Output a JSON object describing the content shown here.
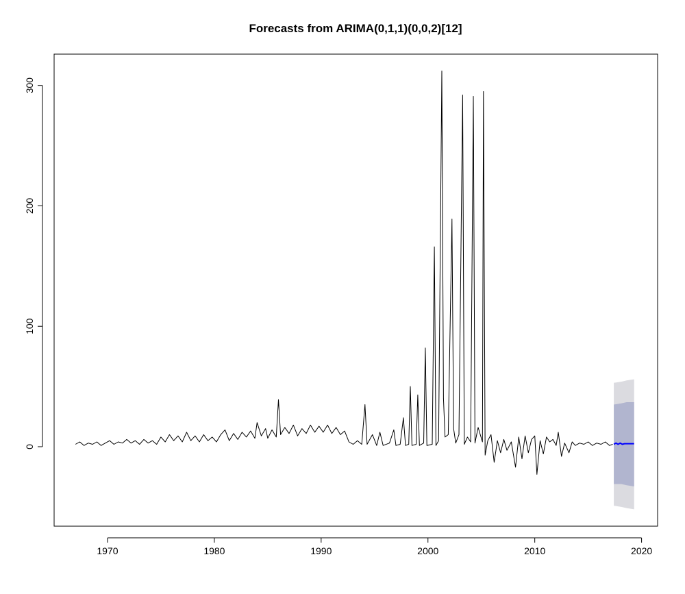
{
  "chart_data": {
    "type": "line",
    "title": "Forecasts from ARIMA(0,1,1)(0,0,2)[12]",
    "xlabel": "",
    "ylabel": "",
    "xlim": [
      1965,
      2021.5
    ],
    "ylim": [
      -66,
      326
    ],
    "x_ticks": [
      1970,
      1980,
      1990,
      2000,
      2010,
      2020
    ],
    "y_ticks": [
      0,
      100,
      200,
      300
    ],
    "grid": false,
    "legend": "none",
    "colors": {
      "history": "#000000",
      "forecast": "#0000ff",
      "interval_80": "#b1b5cf",
      "interval_95": "#dbdbe0",
      "axis": "#000000"
    },
    "series": [
      {
        "type": "line",
        "color": "#000000",
        "points": [
          [
            1967.0,
            2
          ],
          [
            1967.4,
            4
          ],
          [
            1967.8,
            1
          ],
          [
            1968.2,
            3
          ],
          [
            1968.6,
            2
          ],
          [
            1969.0,
            4
          ],
          [
            1969.4,
            1
          ],
          [
            1969.8,
            3
          ],
          [
            1970.2,
            5
          ],
          [
            1970.6,
            2
          ],
          [
            1971.0,
            4
          ],
          [
            1971.4,
            3
          ],
          [
            1971.8,
            6
          ],
          [
            1972.2,
            3
          ],
          [
            1972.6,
            5
          ],
          [
            1973.0,
            2
          ],
          [
            1973.4,
            6
          ],
          [
            1973.8,
            3
          ],
          [
            1974.2,
            5
          ],
          [
            1974.6,
            2
          ],
          [
            1975.0,
            8
          ],
          [
            1975.4,
            4
          ],
          [
            1975.8,
            10
          ],
          [
            1976.2,
            5
          ],
          [
            1976.6,
            9
          ],
          [
            1977.0,
            4
          ],
          [
            1977.4,
            12
          ],
          [
            1977.8,
            5
          ],
          [
            1978.2,
            9
          ],
          [
            1978.6,
            4
          ],
          [
            1979.0,
            10
          ],
          [
            1979.4,
            5
          ],
          [
            1979.8,
            8
          ],
          [
            1980.2,
            4
          ],
          [
            1980.6,
            10
          ],
          [
            1981.0,
            14
          ],
          [
            1981.4,
            5
          ],
          [
            1981.8,
            11
          ],
          [
            1982.2,
            6
          ],
          [
            1982.6,
            12
          ],
          [
            1983.0,
            8
          ],
          [
            1983.4,
            13
          ],
          [
            1983.8,
            7
          ],
          [
            1984.0,
            20
          ],
          [
            1984.4,
            9
          ],
          [
            1984.8,
            15
          ],
          [
            1985.0,
            7
          ],
          [
            1985.4,
            14
          ],
          [
            1985.8,
            8
          ],
          [
            1986.0,
            39
          ],
          [
            1986.2,
            10
          ],
          [
            1986.6,
            16
          ],
          [
            1987.0,
            11
          ],
          [
            1987.4,
            18
          ],
          [
            1987.8,
            9
          ],
          [
            1988.2,
            15
          ],
          [
            1988.6,
            11
          ],
          [
            1989.0,
            18
          ],
          [
            1989.4,
            12
          ],
          [
            1989.8,
            17
          ],
          [
            1990.2,
            12
          ],
          [
            1990.6,
            18
          ],
          [
            1991.0,
            11
          ],
          [
            1991.4,
            16
          ],
          [
            1991.8,
            10
          ],
          [
            1992.2,
            13
          ],
          [
            1992.6,
            4
          ],
          [
            1993.0,
            2
          ],
          [
            1993.4,
            5
          ],
          [
            1993.8,
            2
          ],
          [
            1994.1,
            35
          ],
          [
            1994.3,
            2
          ],
          [
            1994.8,
            10
          ],
          [
            1995.2,
            1
          ],
          [
            1995.5,
            12
          ],
          [
            1995.8,
            1
          ],
          [
            1996.4,
            3
          ],
          [
            1996.8,
            14
          ],
          [
            1997.0,
            1
          ],
          [
            1997.4,
            2
          ],
          [
            1997.7,
            24
          ],
          [
            1997.9,
            1
          ],
          [
            1998.2,
            2
          ],
          [
            1998.35,
            50
          ],
          [
            1998.5,
            1
          ],
          [
            1998.9,
            2
          ],
          [
            1999.05,
            43
          ],
          [
            1999.2,
            1
          ],
          [
            1999.6,
            3
          ],
          [
            1999.75,
            82
          ],
          [
            1999.9,
            1
          ],
          [
            2000.4,
            2
          ],
          [
            2000.6,
            166
          ],
          [
            2000.75,
            1
          ],
          [
            2001.0,
            5
          ],
          [
            2001.3,
            312
          ],
          [
            2001.45,
            40
          ],
          [
            2001.6,
            8
          ],
          [
            2001.9,
            10
          ],
          [
            2002.25,
            189
          ],
          [
            2002.4,
            15
          ],
          [
            2002.6,
            3
          ],
          [
            2002.9,
            10
          ],
          [
            2003.25,
            292
          ],
          [
            2003.4,
            2
          ],
          [
            2003.7,
            8
          ],
          [
            2004.0,
            4
          ],
          [
            2004.25,
            291
          ],
          [
            2004.4,
            3
          ],
          [
            2004.7,
            16
          ],
          [
            2005.1,
            4
          ],
          [
            2005.2,
            295
          ],
          [
            2005.35,
            -7
          ],
          [
            2005.6,
            5
          ],
          [
            2005.9,
            10
          ],
          [
            2006.2,
            -13
          ],
          [
            2006.5,
            5
          ],
          [
            2006.8,
            -5
          ],
          [
            2007.1,
            6
          ],
          [
            2007.4,
            -3
          ],
          [
            2007.8,
            4
          ],
          [
            2008.2,
            -17
          ],
          [
            2008.5,
            8
          ],
          [
            2008.8,
            -10
          ],
          [
            2009.1,
            9
          ],
          [
            2009.4,
            -5
          ],
          [
            2009.7,
            6
          ],
          [
            2010.0,
            9
          ],
          [
            2010.2,
            -23
          ],
          [
            2010.5,
            5
          ],
          [
            2010.8,
            -6
          ],
          [
            2011.1,
            8
          ],
          [
            2011.4,
            4
          ],
          [
            2011.7,
            6
          ],
          [
            2012.0,
            1
          ],
          [
            2012.2,
            12
          ],
          [
            2012.5,
            -8
          ],
          [
            2012.8,
            3
          ],
          [
            2013.2,
            -5
          ],
          [
            2013.5,
            4
          ],
          [
            2013.8,
            1
          ],
          [
            2014.2,
            3
          ],
          [
            2014.6,
            2
          ],
          [
            2015.0,
            4
          ],
          [
            2015.4,
            1
          ],
          [
            2015.8,
            3
          ],
          [
            2016.2,
            2
          ],
          [
            2016.6,
            4
          ],
          [
            2017.0,
            1
          ],
          [
            2017.3,
            2
          ]
        ]
      },
      {
        "type": "forecast",
        "color": "#0000ff",
        "points": [
          [
            2017.4,
            2
          ],
          [
            2017.6,
            3
          ],
          [
            2017.8,
            2
          ],
          [
            2018.0,
            3
          ],
          [
            2018.2,
            2
          ],
          [
            2018.4,
            2.5
          ],
          [
            2018.6,
            2.5
          ],
          [
            2018.8,
            2.5
          ],
          [
            2019.0,
            2.5
          ],
          [
            2019.3,
            2.5
          ]
        ]
      }
    ],
    "intervals": [
      {
        "level": 95,
        "color": "#dbdbe0",
        "x": [
          2017.4,
          2018.1,
          2018.6,
          2019.3
        ],
        "lower": [
          -49,
          -50,
          -51,
          -52
        ],
        "upper": [
          53,
          54,
          55,
          56
        ]
      },
      {
        "level": 80,
        "color": "#b1b5cf",
        "x": [
          2017.4,
          2018.1,
          2018.6,
          2019.3
        ],
        "lower": [
          -31,
          -31,
          -32,
          -33
        ],
        "upper": [
          35,
          36,
          37,
          37
        ]
      }
    ]
  }
}
